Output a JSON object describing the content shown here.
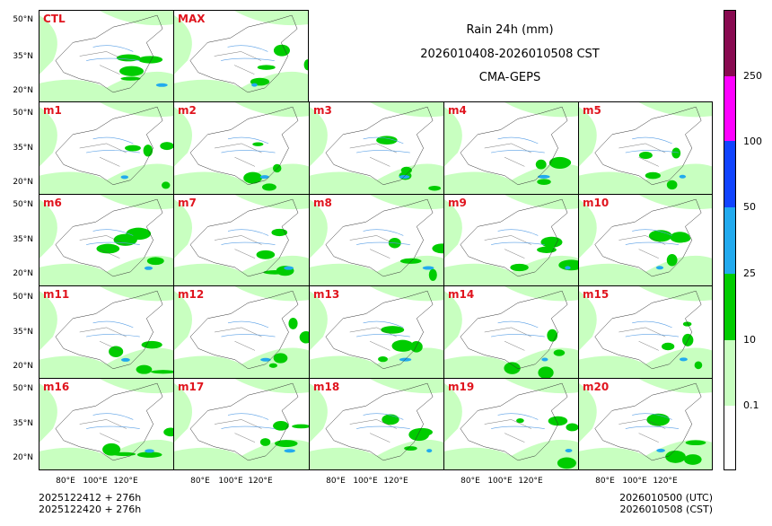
{
  "title": {
    "line1": "Rain 24h (mm)",
    "line2": "2026010408-2026010508 CST",
    "line3": "CMA-GEPS"
  },
  "panels": {
    "ctl": "CTL",
    "max": "MAX",
    "m1": "m1",
    "m2": "m2",
    "m3": "m3",
    "m4": "m4",
    "m5": "m5",
    "m6": "m6",
    "m7": "m7",
    "m8": "m8",
    "m9": "m9",
    "m10": "m10",
    "m11": "m11",
    "m12": "m12",
    "m13": "m13",
    "m14": "m14",
    "m15": "m15",
    "m16": "m16",
    "m17": "m17",
    "m18": "m18",
    "m19": "m19",
    "m20": "m20"
  },
  "axes": {
    "lat": [
      "50°N",
      "35°N",
      "20°N"
    ],
    "lon": [
      "80°E",
      "100°E",
      "120°E"
    ]
  },
  "colorbar": {
    "ticks": [
      "0.1",
      "10",
      "25",
      "50",
      "100",
      "250"
    ],
    "colors": [
      "#ffffff",
      "#c8ffc0",
      "#00cc00",
      "#22aaee",
      "#1144ff",
      "#ff00ff",
      "#880a50"
    ]
  },
  "footer": {
    "left1": "2025122412 + 276h",
    "left2": "2025122420 + 276h",
    "right1": "2026010500 (UTC)",
    "right2": "2026010508 (CST)"
  }
}
